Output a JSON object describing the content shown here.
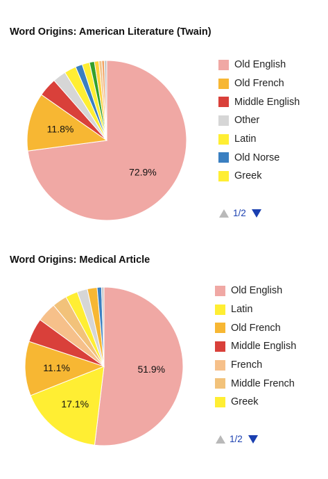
{
  "chart_data": [
    {
      "type": "pie",
      "title": "Word Origins: American Literature (Twain)",
      "legend_position": "right",
      "pager": "1/2",
      "slices": [
        {
          "label": "Old English",
          "value": 72.9,
          "color": "#f0a8a4",
          "display": "72.9%"
        },
        {
          "label": "Old French",
          "value": 11.8,
          "color": "#f7b733",
          "display": "11.8%"
        },
        {
          "label": "Middle English",
          "value": 3.8,
          "color": "#d9403a"
        },
        {
          "label": "Other",
          "value": 2.7,
          "color": "#d6d6d6"
        },
        {
          "label": "Latin",
          "value": 2.4,
          "color": "#ffee33"
        },
        {
          "label": "Old Norse",
          "value": 1.4,
          "color": "#3a7fc1"
        },
        {
          "label": "Greek",
          "value": 1.5,
          "color": "#ffee33"
        },
        {
          "value": 1.0,
          "color": "#33a02c"
        },
        {
          "value": 0.9,
          "color": "#ffd23a"
        },
        {
          "value": 0.6,
          "color": "#f2c58c"
        },
        {
          "value": 0.5,
          "color": "#f2a060"
        },
        {
          "value": 0.5,
          "color": "#c8c8c8"
        }
      ]
    },
    {
      "type": "pie",
      "title": "Word Origins: Medical Article",
      "legend_position": "right",
      "pager": "1/2",
      "slices": [
        {
          "label": "Old English",
          "value": 51.9,
          "color": "#f0a8a4",
          "display": "51.9%"
        },
        {
          "label": "Latin",
          "value": 17.1,
          "color": "#ffee33",
          "display": "17.1%"
        },
        {
          "label": "Old French",
          "value": 11.1,
          "color": "#f7b733",
          "display": "11.1%"
        },
        {
          "label": "Middle English",
          "value": 4.9,
          "color": "#d9403a"
        },
        {
          "label": "French",
          "value": 4.0,
          "color": "#f6c08a"
        },
        {
          "label": "Middle French",
          "value": 3.0,
          "color": "#f2c27a"
        },
        {
          "label": "Greek",
          "value": 2.5,
          "color": "#ffee33"
        },
        {
          "value": 2.1,
          "color": "#d6d6d6"
        },
        {
          "value": 2.0,
          "color": "#f7b733"
        },
        {
          "value": 0.9,
          "color": "#3a7fc1"
        },
        {
          "value": 0.5,
          "color": "#c8c8c8"
        }
      ]
    }
  ]
}
